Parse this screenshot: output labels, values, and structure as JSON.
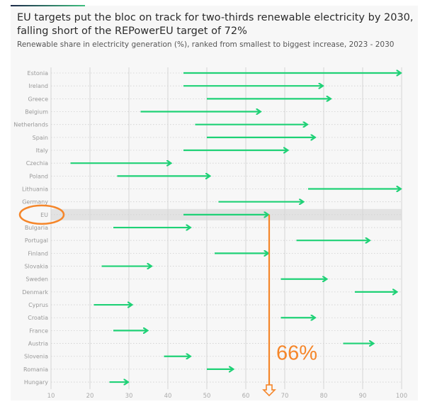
{
  "chart_data": {
    "type": "arrow-range",
    "title": "EU targets put the bloc on track for two-thirds renewable electricity by 2030, falling short of the REPowerEU target of 72%",
    "subtitle": "Renewable share in electricity generation (%), ranked from smallest to biggest increase, 2023 - 2030",
    "xlim": [
      10,
      100
    ],
    "xticks": [
      10,
      20,
      30,
      40,
      50,
      60,
      70,
      80,
      90,
      100
    ],
    "grid": true,
    "colors": {
      "arrow": "#1fd176",
      "highlight": "#e2e2e2",
      "annotation": "#f5862a"
    },
    "highlighted": "EU",
    "annotation": {
      "label": "66%",
      "value": 66
    },
    "rows": [
      {
        "name": "Estonia",
        "start": 44,
        "end": 100
      },
      {
        "name": "Ireland",
        "start": 44,
        "end": 80
      },
      {
        "name": "Greece",
        "start": 50,
        "end": 82
      },
      {
        "name": "Belgium",
        "start": 33,
        "end": 64
      },
      {
        "name": "Netherlands",
        "start": 47,
        "end": 76
      },
      {
        "name": "Spain",
        "start": 50,
        "end": 78
      },
      {
        "name": "Italy",
        "start": 44,
        "end": 71
      },
      {
        "name": "Czechia",
        "start": 15,
        "end": 41
      },
      {
        "name": "Poland",
        "start": 27,
        "end": 51
      },
      {
        "name": "Lithuania",
        "start": 76,
        "end": 100
      },
      {
        "name": "Germany",
        "start": 53,
        "end": 75
      },
      {
        "name": "EU",
        "start": 44,
        "end": 66
      },
      {
        "name": "Bulgaria",
        "start": 26,
        "end": 46
      },
      {
        "name": "Portugal",
        "start": 73,
        "end": 92
      },
      {
        "name": "Finland",
        "start": 52,
        "end": 66
      },
      {
        "name": "Slovakia",
        "start": 23,
        "end": 36
      },
      {
        "name": "Sweden",
        "start": 69,
        "end": 81
      },
      {
        "name": "Denmark",
        "start": 88,
        "end": 99
      },
      {
        "name": "Cyprus",
        "start": 21,
        "end": 31
      },
      {
        "name": "Croatia",
        "start": 69,
        "end": 78
      },
      {
        "name": "France",
        "start": 26,
        "end": 35
      },
      {
        "name": "Austria",
        "start": 85,
        "end": 93
      },
      {
        "name": "Slovenia",
        "start": 39,
        "end": 46
      },
      {
        "name": "Romania",
        "start": 50,
        "end": 57
      },
      {
        "name": "Hungary",
        "start": 25,
        "end": 30
      }
    ]
  }
}
